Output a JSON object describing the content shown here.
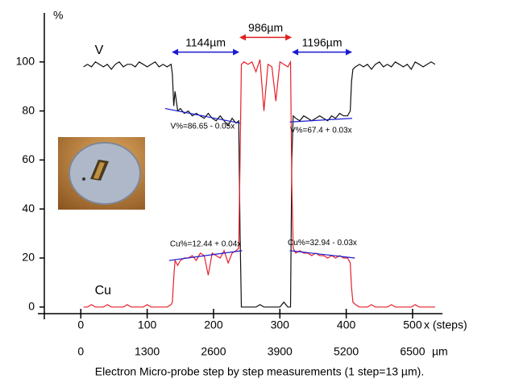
{
  "chart_data": {
    "type": "line",
    "ylabel": "%",
    "xlabel": "x (steps)",
    "x2label": "µm",
    "caption": "Electron Micro-probe step by step measurements  (1 step=13 µm).",
    "xlim": [
      -55,
      545
    ],
    "xticks": [
      0,
      100,
      200,
      300,
      400,
      500
    ],
    "x2lim": [
      -715,
      7085
    ],
    "x2ticks": [
      0,
      1300,
      2600,
      3900,
      5200,
      6500
    ],
    "ylim": [
      -5,
      120
    ],
    "yticks": [
      0,
      20,
      40,
      60,
      80,
      100
    ],
    "x": [
      4,
      10,
      16,
      22,
      28,
      34,
      40,
      46,
      52,
      58,
      64,
      70,
      76,
      82,
      88,
      94,
      100,
      106,
      112,
      118,
      124,
      130,
      136,
      138,
      140,
      142,
      146,
      150,
      156,
      162,
      168,
      174,
      180,
      186,
      192,
      198,
      204,
      210,
      216,
      222,
      228,
      234,
      238,
      240,
      242,
      246,
      252,
      258,
      264,
      270,
      276,
      282,
      288,
      294,
      300,
      306,
      312,
      316,
      318,
      320,
      324,
      330,
      336,
      342,
      348,
      354,
      360,
      366,
      372,
      378,
      384,
      390,
      396,
      402,
      406,
      408,
      410,
      414,
      420,
      426,
      432,
      438,
      444,
      450,
      456,
      462,
      468,
      474,
      480,
      486,
      492,
      498,
      504,
      510,
      516,
      522,
      528,
      534
    ],
    "series": [
      {
        "name": "V",
        "color": "#111111",
        "values": [
          98,
          99,
          98,
          100,
          99,
          98,
          99,
          97,
          99,
          100,
          98,
          99,
          99,
          98,
          100,
          99,
          98,
          99,
          100,
          98,
          99,
          98,
          99,
          95,
          82,
          88,
          80,
          81,
          79,
          80,
          78,
          79,
          78,
          77,
          79,
          77,
          76,
          78,
          76,
          74,
          77,
          75,
          76,
          30,
          0,
          0,
          0,
          0,
          0,
          1,
          0,
          0,
          0,
          0,
          0,
          2,
          0,
          0,
          60,
          78,
          77,
          76,
          78,
          77,
          76,
          77,
          78,
          77,
          76,
          78,
          77,
          79,
          78,
          78,
          80,
          92,
          97,
          98,
          99,
          98,
          99,
          97,
          99,
          100,
          98,
          99,
          98,
          100,
          99,
          98,
          99,
          97,
          100,
          99,
          98,
          99,
          100,
          99
        ]
      },
      {
        "name": "Cu",
        "color": "#e8202a",
        "values": [
          0,
          0,
          1,
          0,
          0,
          0,
          1,
          0,
          0,
          0,
          0,
          1,
          0,
          0,
          0,
          0,
          1,
          0,
          0,
          0,
          0,
          0,
          1,
          2,
          12,
          19,
          17,
          19,
          20,
          20,
          21,
          19,
          22,
          21,
          13,
          22,
          21,
          20,
          23,
          18,
          22,
          23,
          24,
          60,
          99,
          100,
          99,
          100,
          96,
          101,
          80,
          99,
          98,
          84,
          100,
          99,
          98,
          100,
          50,
          24,
          22,
          23,
          22,
          22,
          21,
          22,
          21,
          21,
          20,
          21,
          20,
          21,
          20,
          20,
          18,
          8,
          2,
          1,
          0,
          0,
          0,
          1,
          0,
          0,
          0,
          0,
          1,
          0,
          0,
          0,
          0,
          0,
          1,
          0,
          0,
          0,
          0,
          0
        ]
      }
    ],
    "fits": [
      {
        "label": "V%=86.65 - 0.05x",
        "x": [
          127,
          240
        ],
        "y": [
          81,
          75
        ],
        "color": "#1a1ad0"
      },
      {
        "label": "V%=67.4 + 0.03x",
        "x": [
          315,
          409
        ],
        "y": [
          75.5,
          77
        ],
        "color": "#1a1ad0"
      },
      {
        "label": "Cu%=12.44 + 0.04x",
        "x": [
          133,
          243
        ],
        "y": [
          19,
          23
        ],
        "color": "#1a1ad0"
      },
      {
        "label": "Cu%=32.94 - 0.03x",
        "x": [
          315,
          413
        ],
        "y": [
          23,
          20
        ],
        "color": "#1a1ad0"
      }
    ],
    "arrows": [
      {
        "label": "1144µm",
        "x": [
          137,
          239
        ],
        "y": 104,
        "color": "#1a1ad0"
      },
      {
        "label": "986µm",
        "x": [
          239,
          318
        ],
        "y": 110,
        "color": "#e02020"
      },
      {
        "label": "1196µm",
        "x": [
          318,
          409
        ],
        "y": 104,
        "color": "#1a1ad0"
      }
    ]
  }
}
